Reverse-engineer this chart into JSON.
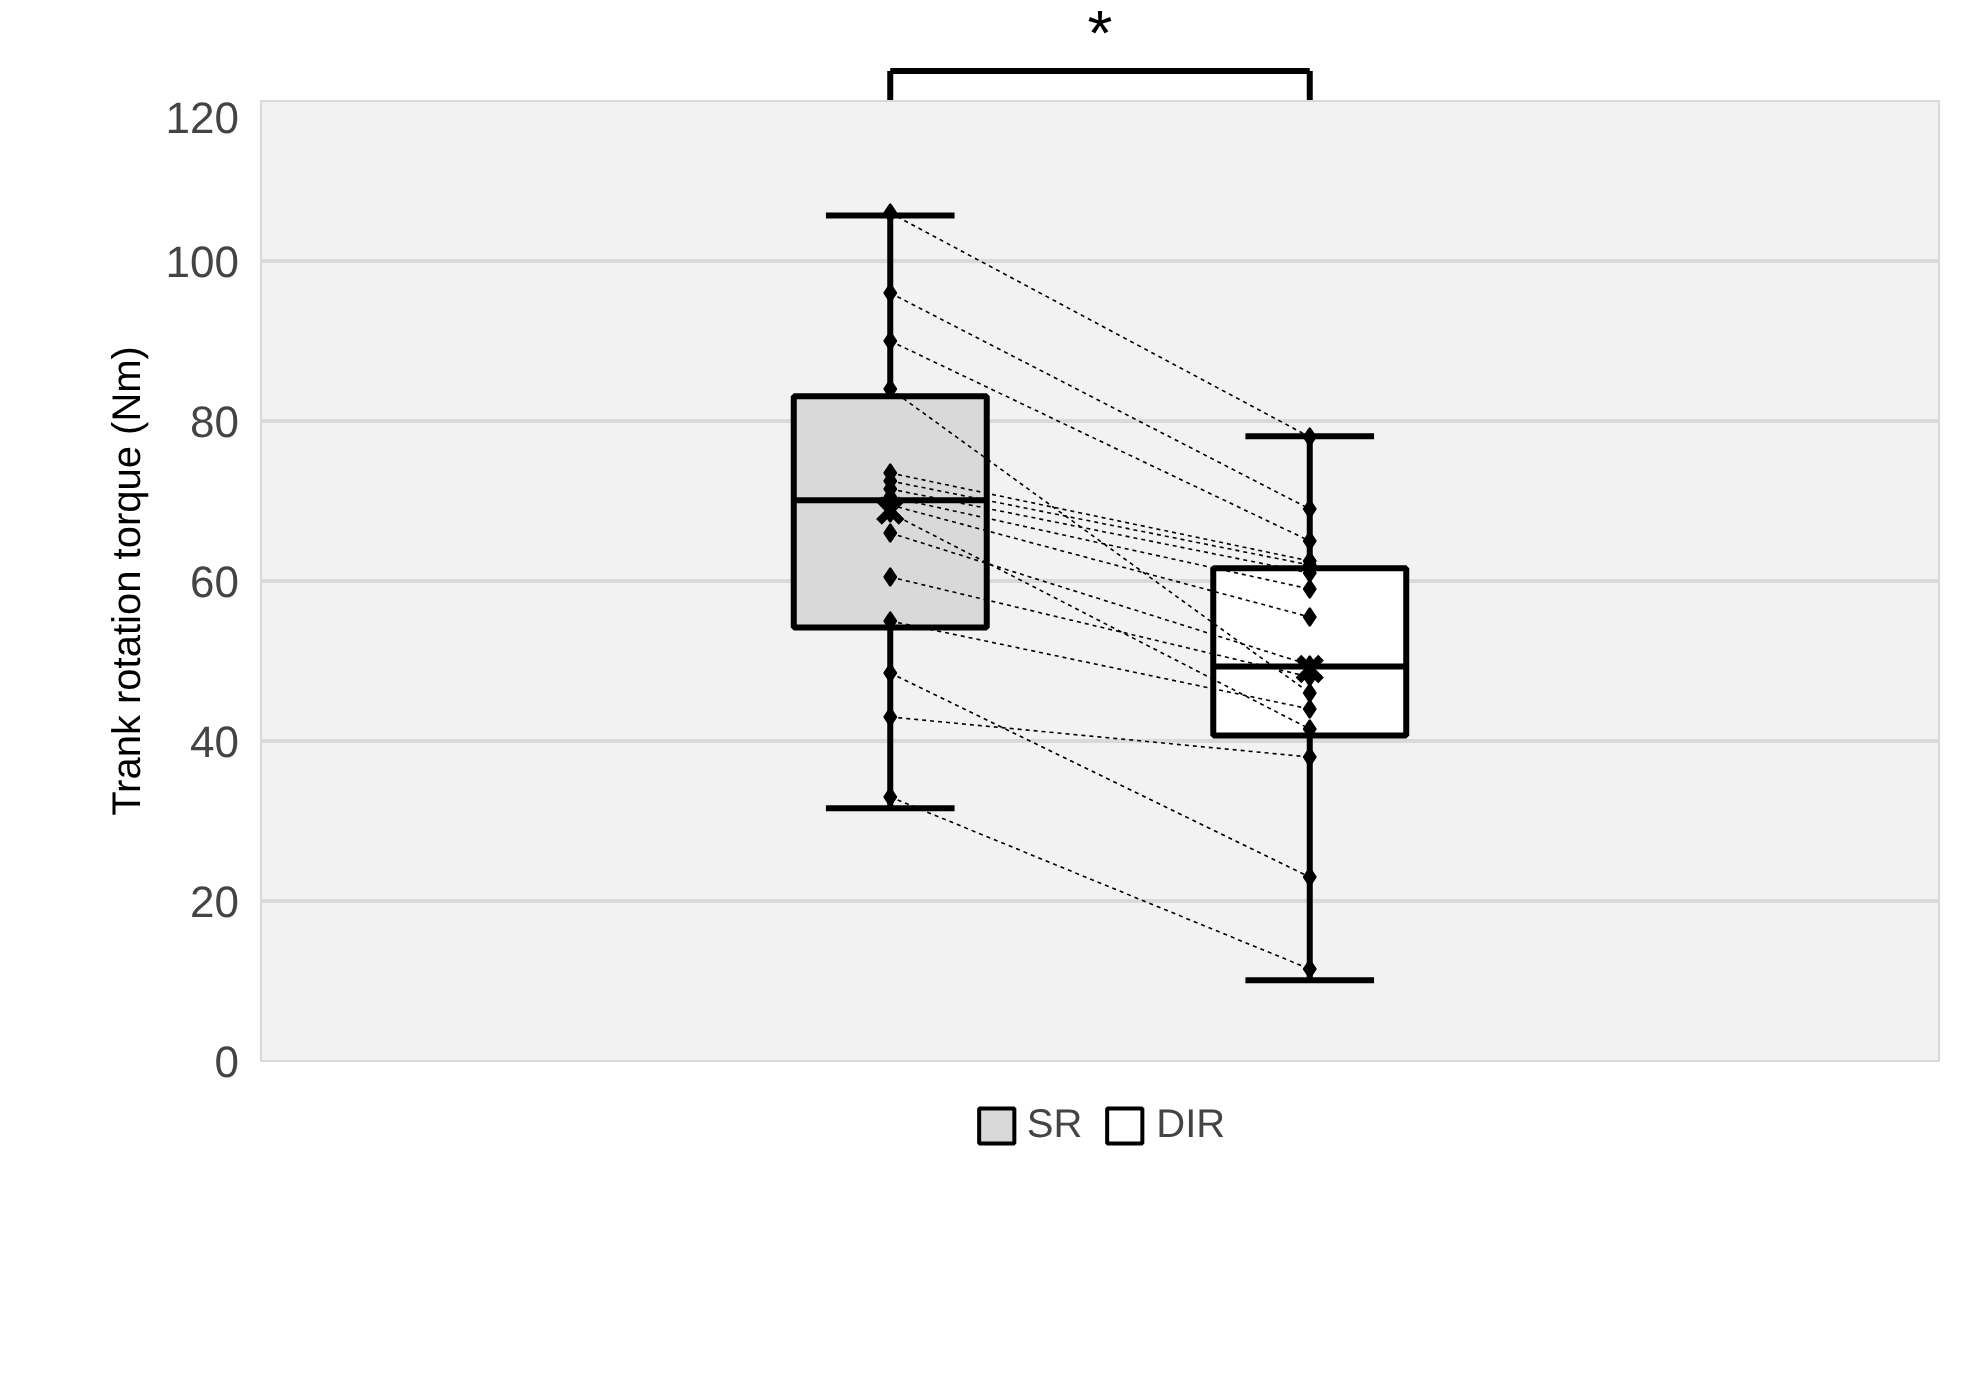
{
  "chart_data": {
    "type": "box",
    "ylabel": "Trank rotation torque (Nm)",
    "categories": [
      null,
      null,
      null,
      null
    ],
    "ylim": [
      0,
      120
    ],
    "yticks": [
      0,
      20,
      40,
      60,
      80,
      100,
      120
    ],
    "grid": "y",
    "legend": "bottom",
    "tick_labels": "y",
    "annotations": [
      "*"
    ],
    "series": [
      {
        "name": "SR",
        "color": "#d9d9d9",
        "boxes": [
          null,
          {
            "low": 31.6,
            "q1": 54.2,
            "median": 70.1,
            "q3": 83.1,
            "high": 105.7,
            "mean": 68.8
          },
          null,
          null
        ]
      },
      {
        "name": "DIR",
        "color": "#ffffff",
        "boxes": [
          null,
          null,
          {
            "low": 10.1,
            "q1": 40.7,
            "median": 49.3,
            "q3": 61.6,
            "high": 78.1,
            "mean": 49.0
          },
          null
        ]
      },
      {
        "type": "line",
        "color": "#000000",
        "line_style": "dotted",
        "marker": "diamond",
        "values": [
          null,
          106,
          78,
          null
        ]
      },
      {
        "type": "line",
        "color": "#000000",
        "line_style": "dotted",
        "marker": "diamond",
        "values": [
          null,
          96,
          69,
          null
        ]
      },
      {
        "type": "line",
        "color": "#000000",
        "line_style": "dotted",
        "marker": "diamond",
        "values": [
          null,
          90,
          65,
          null
        ]
      },
      {
        "type": "line",
        "color": "#000000",
        "line_style": "dotted",
        "marker": "diamond",
        "values": [
          null,
          84,
          46,
          null
        ]
      },
      {
        "type": "line",
        "color": "#000000",
        "line_style": "dotted",
        "marker": "diamond",
        "values": [
          null,
          73.5,
          62.5,
          null
        ]
      },
      {
        "type": "line",
        "color": "#000000",
        "line_style": "dotted",
        "marker": "diamond",
        "values": [
          null,
          72.5,
          62,
          null
        ]
      },
      {
        "type": "line",
        "color": "#000000",
        "line_style": "dotted",
        "marker": "diamond",
        "values": [
          null,
          71.5,
          61,
          null
        ]
      },
      {
        "type": "line",
        "color": "#000000",
        "line_style": "dotted",
        "marker": "diamond",
        "values": [
          null,
          70.5,
          59,
          null
        ]
      },
      {
        "type": "line",
        "color": "#000000",
        "line_style": "dotted",
        "marker": "diamond",
        "values": [
          null,
          69.5,
          55.5,
          null
        ]
      },
      {
        "type": "line",
        "color": "#000000",
        "line_style": "dotted",
        "marker": "diamond",
        "values": [
          null,
          68.5,
          41.5,
          null
        ]
      },
      {
        "type": "line",
        "color": "#000000",
        "line_style": "dotted",
        "marker": "diamond",
        "values": [
          null,
          66,
          49.5,
          null
        ]
      },
      {
        "type": "line",
        "color": "#000000",
        "line_style": "dotted",
        "marker": "diamond",
        "values": [
          null,
          60.5,
          48,
          null
        ]
      },
      {
        "type": "line",
        "color": "#000000",
        "line_style": "dotted",
        "marker": "diamond",
        "values": [
          null,
          55,
          44,
          null
        ]
      },
      {
        "type": "line",
        "color": "#000000",
        "line_style": "dotted",
        "marker": "diamond",
        "values": [
          null,
          48.5,
          23,
          null
        ]
      },
      {
        "type": "line",
        "color": "#000000",
        "line_style": "dotted",
        "marker": "diamond",
        "values": [
          null,
          43,
          38,
          null
        ]
      },
      {
        "type": "line",
        "color": "#000000",
        "line_style": "dotted",
        "marker": "diamond",
        "values": [
          null,
          33,
          11.5,
          null
        ]
      }
    ]
  }
}
